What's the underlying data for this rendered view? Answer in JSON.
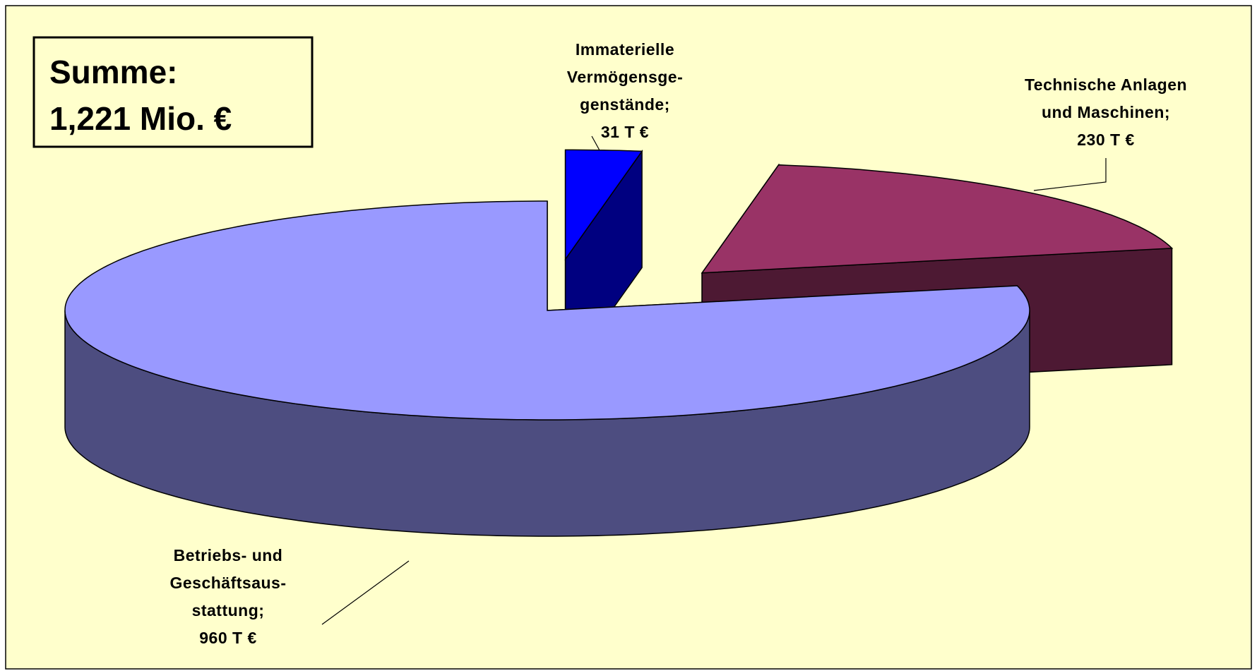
{
  "chart_data": {
    "type": "pie3d",
    "annotation": [
      "Summe:",
      "1,221 Mio. €"
    ],
    "categories": [
      "Immaterielle\nVermögensge-\ngenstände;",
      "Technische Anlagen\nund Maschinen;",
      "Betriebs- und\nGeschäftsaus-\nstattung;"
    ],
    "values": [
      31,
      230,
      960
    ],
    "value_labels": [
      "31 T €",
      "230 T €",
      "960 T €"
    ],
    "colors": [
      "#0000ff",
      "#993366",
      "#9999ff"
    ],
    "side_colors": [
      "#000080",
      "#4d1933",
      "#4d4d80"
    ]
  }
}
